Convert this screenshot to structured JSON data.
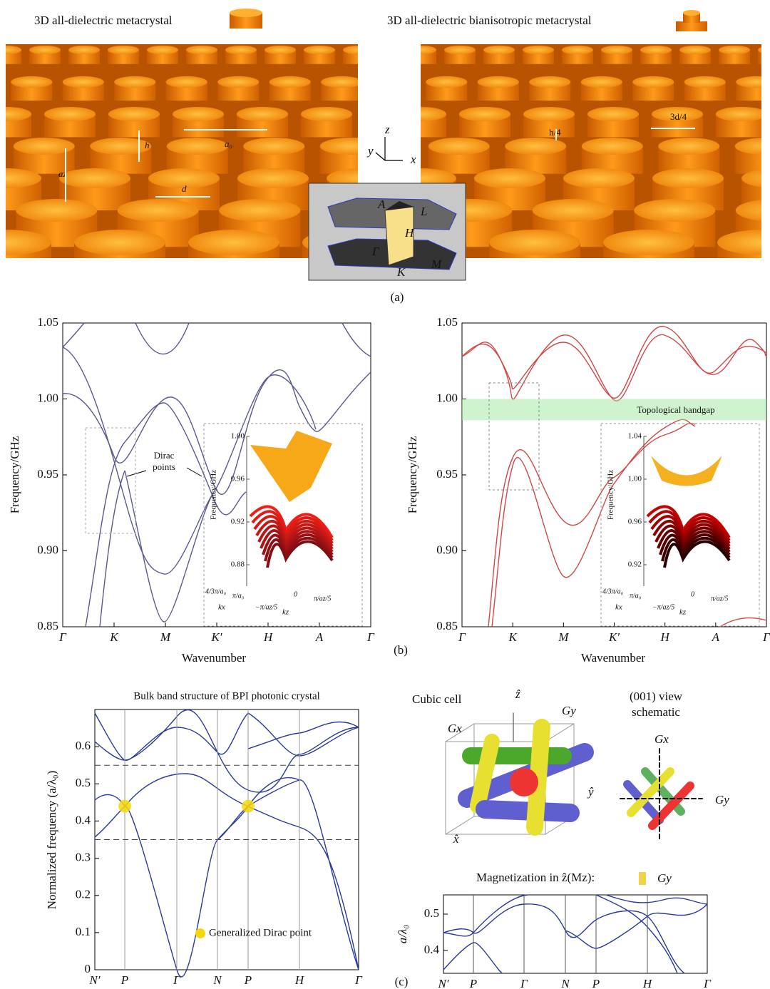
{
  "panel_a": {
    "left_title": "3D all-dielectric metacrystal",
    "right_title": "3D all-dielectric bianisotropic metacrystal",
    "left_dims": [
      "h",
      "a₀",
      "az",
      "d"
    ],
    "right_dims": [
      "h/4",
      "3d/4"
    ],
    "axes": [
      "z",
      "y",
      "x"
    ],
    "bz_points": [
      "A",
      "L",
      "H",
      "Γ",
      "K",
      "M"
    ],
    "caption": "(a)"
  },
  "panel_b": {
    "caption": "(b)",
    "left": {
      "ylabel": "Frequency/GHz",
      "xlabel": "Wavenumber",
      "ylim": [
        0.85,
        1.05
      ],
      "yticks": [
        0.85,
        {
          "value": 0.9,
          "label": "0.90"
        },
        0.95,
        {
          "value": 1,
          "label": "1.00"
        },
        1.05
      ],
      "categories": [
        "Γ",
        "K",
        "M",
        "K′",
        "H",
        "A",
        "Γ"
      ],
      "annotation": [
        "Dirac",
        "points"
      ],
      "inset": {
        "ylabel": "Frequency/GHz",
        "yticks": [
          {
            "value": 1,
            "label": "1.00"
          },
          0.96,
          0.92,
          0.88
        ],
        "xlabels": [
          "4/3π/a₀",
          "π/a₀",
          "−π/az/5",
          "0",
          "π/az/5"
        ],
        "axis_names": [
          "kx",
          "kz"
        ]
      }
    },
    "right": {
      "ylabel": "Frequency/GHz",
      "xlabel": "Wavenumber",
      "ylim": [
        0.85,
        1.05
      ],
      "yticks": [
        0.85,
        {
          "value": 0.9,
          "label": "0.90"
        },
        0.95,
        {
          "value": 1,
          "label": "1.00"
        },
        1.05
      ],
      "categories": [
        "Γ",
        "K",
        "M",
        "K′",
        "H",
        "A",
        "Γ"
      ],
      "annotation": "Topological bandgap",
      "bandgap": [
        0.986,
        1.0
      ],
      "inset": {
        "ylabel": "Frequency/GHz",
        "yticks": [
          1.04,
          {
            "value": 1,
            "label": "1.00"
          },
          0.96,
          0.92
        ],
        "xlabels": [
          "4/3π/a₀",
          "π/a₀",
          "−π/az/5",
          "0",
          "π/az/5"
        ],
        "axis_names": [
          "kx",
          "kz"
        ]
      }
    }
  },
  "panel_c": {
    "caption": "(c)",
    "left": {
      "title": "Bulk band structure of BPI photonic crystal",
      "ylabel": "Normalized frequency (a/λ₀)",
      "ylim": [
        0,
        0.7
      ],
      "yticks": [
        0,
        0.1,
        0.2,
        0.3,
        0.4,
        0.5,
        0.6
      ],
      "categories": [
        "N′",
        "P",
        "Γ",
        "N",
        "P",
        "H",
        "Γ"
      ],
      "gap_edges": [
        0.35,
        0.55
      ],
      "dirac_points": [
        0.44,
        0.44
      ],
      "legend": "Generalized Dirac point"
    },
    "right": {
      "cell_label": "Cubic cell",
      "view_label": [
        "(001) view",
        "schematic"
      ],
      "cell_axes": [
        "ẑ",
        "ŷ",
        "x̂"
      ],
      "rods": [
        "Gx",
        "Gy"
      ],
      "magnetization": "Magnetization in ẑ(Mz):",
      "magnetization_suffix": "Gy",
      "ylabel": "a/λ₀",
      "ylim": [
        0.337,
        0.553
      ],
      "yticks": [
        0.4,
        0.5
      ],
      "categories": [
        "N′",
        "P",
        "Γ",
        "N",
        "P",
        "H",
        "Γ"
      ]
    }
  }
}
